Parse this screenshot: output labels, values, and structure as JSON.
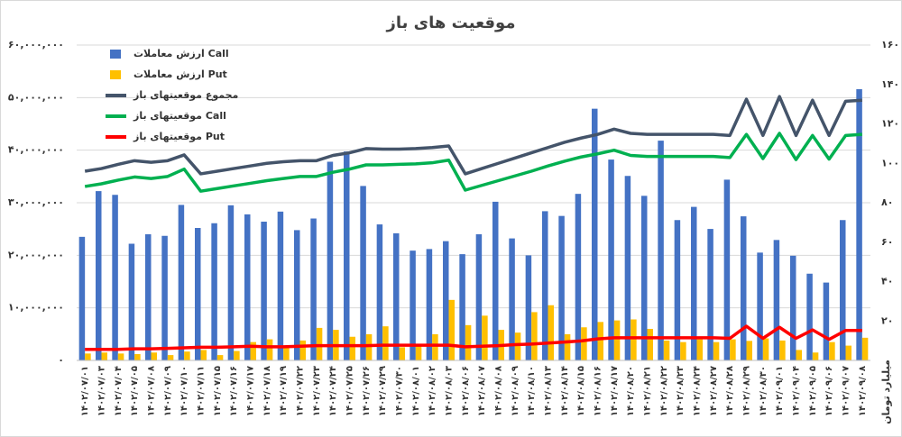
{
  "chart_data": {
    "type": "bar",
    "title": "موقعیت های باز",
    "y2_label": "میلیارد تومان",
    "categories": [
      "۱۴۰۲/۰۷/۰۱",
      "۱۴۰۲/۰۷/۰۳",
      "۱۴۰۲/۰۷/۰۴",
      "۱۴۰۲/۰۷/۰۵",
      "۱۴۰۲/۰۷/۰۸",
      "۱۴۰۲/۰۷/۰۹",
      "۱۴۰۲/۰۷/۱۰",
      "۱۴۰۲/۰۷/۱۱",
      "۱۴۰۲/۰۷/۱۵",
      "۱۴۰۲/۰۷/۱۶",
      "۱۴۰۲/۰۷/۱۷",
      "۱۴۰۲/۰۷/۱۸",
      "۱۴۰۲/۰۷/۱۹",
      "۱۴۰۲/۰۷/۲۲",
      "۱۴۰۲/۰۷/۲۳",
      "۱۴۰۲/۰۷/۲۴",
      "۱۴۰۲/۰۷/۲۵",
      "۱۴۰۲/۰۷/۲۶",
      "۱۴۰۲/۰۷/۲۹",
      "۱۴۰۲/۰۷/۳۰",
      "۱۴۰۲/۰۸/۰۱",
      "۱۴۰۲/۰۸/۰۲",
      "۱۴۰۲/۰۸/۰۳",
      "۱۴۰۲/۰۸/۰۶",
      "۱۴۰۲/۰۸/۰۷",
      "۱۴۰۲/۰۸/۰۸",
      "۱۴۰۲/۰۸/۰۹",
      "۱۴۰۲/۰۸/۱۰",
      "۱۴۰۲/۰۸/۱۳",
      "۱۴۰۲/۰۸/۱۴",
      "۱۴۰۲/۰۸/۱۵",
      "۱۴۰۲/۰۸/۱۶",
      "۱۴۰۲/۰۸/۱۷",
      "۱۴۰۲/۰۸/۲۰",
      "۱۴۰۲/۰۸/۲۱",
      "۱۴۰۲/۰۸/۲۲",
      "۱۴۰۲/۰۸/۲۳",
      "۱۴۰۲/۰۸/۲۴",
      "۱۴۰۲/۰۸/۲۷",
      "۱۴۰۲/۰۸/۲۸",
      "۱۴۰۲/۰۸/۲۹",
      "۱۴۰۲/۰۸/۳۰",
      "۱۴۰۲/۰۹/۰۱",
      "۱۴۰۲/۰۹/۰۴",
      "۱۴۰۲/۰۹/۰۵",
      "۱۴۰۲/۰۹/۰۶",
      "۱۴۰۲/۰۹/۰۷",
      "۱۴۰۲/۰۹/۰۸"
    ],
    "series": [
      {
        "name": "ارزش معاملات Call",
        "type": "bar",
        "axis": "y2",
        "color": "#4472c4",
        "values": [
          62.7,
          85.9,
          84,
          59.2,
          64,
          63.2,
          78.9,
          67.2,
          69.6,
          78.7,
          74.1,
          70.4,
          75.5,
          66.1,
          72,
          100.8,
          106,
          88.5,
          69,
          64.5,
          55.7,
          56.5,
          60.5,
          53.9,
          64,
          80.5,
          61.9,
          53.3,
          75.7,
          73.3,
          84.5,
          127.7,
          101.9,
          93.6,
          83.5,
          111.5,
          71.2,
          77.9,
          66.7,
          91.7,
          73.1,
          54.7,
          61.1,
          53.1,
          44,
          39.5,
          71.2,
          137.6
        ]
      },
      {
        "name": "ارزش معاملات Put",
        "type": "bar",
        "axis": "y2",
        "color": "#ffc000",
        "values": [
          3.5,
          4,
          3.5,
          3.2,
          4,
          2.7,
          4.5,
          5.3,
          2.7,
          4.8,
          9.3,
          10.7,
          7.5,
          10.1,
          16.5,
          15.5,
          12,
          13.3,
          17.3,
          6.7,
          8,
          13.3,
          30.7,
          17.9,
          22.7,
          15.5,
          14.1,
          24.5,
          28,
          13.3,
          16.8,
          19.5,
          20.3,
          20.8,
          16,
          10.1,
          9.3,
          10.7,
          9.3,
          10.7,
          9.9,
          11.2,
          10.1,
          5.3,
          4,
          9.3,
          7.5,
          11.5
        ]
      },
      {
        "name": "مجموع موقعیتهای باز",
        "type": "line",
        "axis": "y",
        "color": "#44546a",
        "values": [
          36000000,
          36500000,
          37300000,
          38000000,
          37700000,
          38000000,
          39100000,
          35500000,
          36000000,
          36500000,
          37000000,
          37500000,
          37800000,
          38000000,
          38000000,
          39000000,
          39500000,
          40300000,
          40200000,
          40200000,
          40300000,
          40500000,
          40800000,
          35500000,
          36500000,
          37500000,
          38500000,
          39500000,
          40500000,
          41500000,
          42300000,
          43000000,
          44000000,
          43200000,
          43000000,
          43000000,
          43000000,
          43000000,
          43000000,
          42800000,
          49700000,
          42800000,
          50200000,
          42800000,
          49500000,
          42800000,
          49300000,
          49500000
        ]
      },
      {
        "name": "موقعیتهای باز Call",
        "type": "line",
        "axis": "y",
        "color": "#00b050",
        "values": [
          33100000,
          33600000,
          34300000,
          34900000,
          34600000,
          35000000,
          36400000,
          32200000,
          32700000,
          33200000,
          33700000,
          34200000,
          34600000,
          35000000,
          35000000,
          35800000,
          36400000,
          37200000,
          37200000,
          37300000,
          37400000,
          37600000,
          38100000,
          32400000,
          33300000,
          34200000,
          35100000,
          36000000,
          37000000,
          37900000,
          38700000,
          39300000,
          40000000,
          39000000,
          38800000,
          38800000,
          38800000,
          38800000,
          38800000,
          38600000,
          43000000,
          38400000,
          43200000,
          38200000,
          42800000,
          38300000,
          42800000,
          43000000
        ]
      },
      {
        "name": "موقعیتهای باز Put",
        "type": "line",
        "axis": "y",
        "color": "#ff0000",
        "values": [
          2100000,
          2100000,
          2100000,
          2200000,
          2200000,
          2300000,
          2400000,
          2500000,
          2500000,
          2600000,
          2700000,
          2600000,
          2600000,
          2700000,
          2800000,
          2800000,
          2800000,
          2800000,
          2900000,
          2900000,
          2900000,
          2900000,
          2900000,
          2600000,
          2700000,
          2800000,
          3000000,
          3100000,
          3300000,
          3500000,
          3700000,
          4100000,
          4300000,
          4300000,
          4300000,
          4300000,
          4300000,
          4300000,
          4300000,
          4200000,
          6500000,
          4200000,
          6300000,
          4200000,
          5800000,
          4000000,
          5700000,
          5700000
        ]
      }
    ],
    "ylim": [
      0,
      60000000
    ],
    "yticks": [
      {
        "value": 0,
        "label": "۰"
      },
      {
        "value": 10000000,
        "label": "۱۰,۰۰۰,۰۰۰"
      },
      {
        "value": 20000000,
        "label": "۲۰,۰۰۰,۰۰۰"
      },
      {
        "value": 30000000,
        "label": "۳۰,۰۰۰,۰۰۰"
      },
      {
        "value": 40000000,
        "label": "۴۰,۰۰۰,۰۰۰"
      },
      {
        "value": 50000000,
        "label": "۵۰,۰۰۰,۰۰۰"
      },
      {
        "value": 60000000,
        "label": "۶۰,۰۰۰,۰۰۰"
      }
    ],
    "y2lim": [
      0,
      160
    ],
    "y2ticks": [
      {
        "value": 20,
        "label": "۲۰"
      },
      {
        "value": 40,
        "label": "۴۰"
      },
      {
        "value": 60,
        "label": "۶۰"
      },
      {
        "value": 80,
        "label": "۸۰"
      },
      {
        "value": 100,
        "label": "۱۰۰"
      },
      {
        "value": 120,
        "label": "۱۲۰"
      },
      {
        "value": 140,
        "label": "۱۴۰"
      },
      {
        "value": 160,
        "label": "۱۶۰"
      }
    ],
    "grid": true,
    "legend": "upper left"
  }
}
